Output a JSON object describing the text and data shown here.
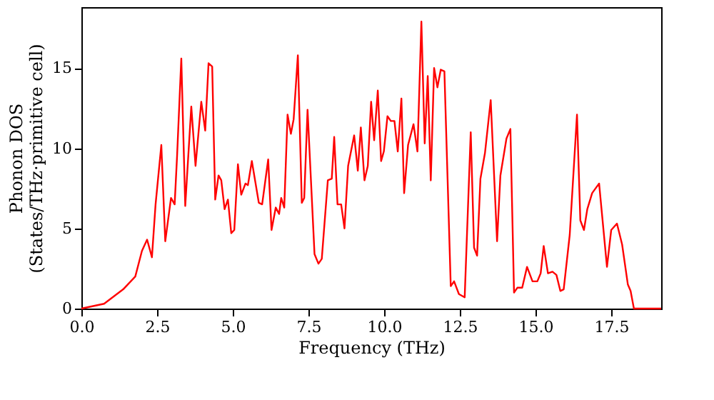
{
  "chart_data": {
    "type": "line",
    "xlabel": "Frequency (THz)",
    "ylabel": "Phonon DOS\n(States/THz·primitive cell)",
    "xlim": [
      0,
      19.15
    ],
    "ylim": [
      0,
      18.8
    ],
    "xticks": [
      {
        "value": 0,
        "label": "0.0"
      },
      {
        "value": 2.5,
        "label": "2.5"
      },
      {
        "value": 5,
        "label": "5.0"
      },
      {
        "value": 7.5,
        "label": "7.5"
      },
      {
        "value": 10,
        "label": "10.0"
      },
      {
        "value": 12.5,
        "label": "12.5"
      },
      {
        "value": 15,
        "label": "15.0"
      },
      {
        "value": 17.5,
        "label": "17.5"
      }
    ],
    "yticks": [
      0,
      5,
      10,
      15
    ],
    "grid": false,
    "marker": "none",
    "line_style": "solid",
    "series": [
      {
        "color": "#ff0000",
        "x": [
          0,
          0.75,
          1.38,
          1.78,
          2.0,
          2.17,
          2.33,
          2.45,
          2.64,
          2.77,
          2.96,
          3.08,
          3.16,
          3.3,
          3.43,
          3.63,
          3.77,
          3.96,
          4.09,
          4.2,
          4.32,
          4.42,
          4.53,
          4.62,
          4.73,
          4.84,
          4.95,
          5.05,
          5.17,
          5.28,
          5.42,
          5.5,
          5.63,
          5.86,
          5.97,
          6.17,
          6.28,
          6.42,
          6.53,
          6.6,
          6.7,
          6.81,
          6.92,
          7.01,
          7.15,
          7.28,
          7.36,
          7.47,
          7.7,
          7.83,
          7.94,
          8.14,
          8.27,
          8.35,
          8.46,
          8.58,
          8.69,
          8.81,
          9.01,
          9.13,
          9.23,
          9.35,
          9.46,
          9.57,
          9.67,
          9.79,
          9.9,
          9.99,
          10.11,
          10.22,
          10.34,
          10.45,
          10.57,
          10.66,
          10.79,
          10.97,
          11.1,
          11.23,
          11.34,
          11.44,
          11.54,
          11.65,
          11.76,
          11.87,
          11.99,
          12.2,
          12.31,
          12.47,
          12.66,
          12.86,
          12.97,
          13.07,
          13.18,
          13.33,
          13.52,
          13.73,
          13.84,
          14.04,
          14.17,
          14.29,
          14.4,
          14.56,
          14.72,
          14.9,
          15.06,
          15.17,
          15.27,
          15.41,
          15.56,
          15.69,
          15.82,
          15.93,
          16.13,
          16.37,
          16.48,
          16.6,
          16.71,
          16.87,
          17.1,
          17.36,
          17.5,
          17.69,
          17.86,
          18.05,
          18.14,
          18.25,
          19.15
        ],
        "values": [
          0,
          0.3,
          1.2,
          2.0,
          3.6,
          4.3,
          3.2,
          6.5,
          10.2,
          4.2,
          6.9,
          6.5,
          9.5,
          15.6,
          6.4,
          12.6,
          8.9,
          12.9,
          11.1,
          15.3,
          15.1,
          6.8,
          8.3,
          8.0,
          6.2,
          6.8,
          4.7,
          4.9,
          9.0,
          7.1,
          7.8,
          7.7,
          9.2,
          6.6,
          6.5,
          9.3,
          4.9,
          6.3,
          5.9,
          6.9,
          6.3,
          12.1,
          10.9,
          11.8,
          15.8,
          6.6,
          6.9,
          12.4,
          3.4,
          2.8,
          3.1,
          8.0,
          8.1,
          10.7,
          6.5,
          6.5,
          5.0,
          8.9,
          10.8,
          8.6,
          11.3,
          8.0,
          8.9,
          12.9,
          10.5,
          13.6,
          9.2,
          9.8,
          12.0,
          11.7,
          11.7,
          9.8,
          13.1,
          7.2,
          10.2,
          11.5,
          9.8,
          17.9,
          10.3,
          14.5,
          8.0,
          15.0,
          13.8,
          14.9,
          14.8,
          1.4,
          1.7,
          0.9,
          0.7,
          11.0,
          3.8,
          3.3,
          8.1,
          9.7,
          13.0,
          4.2,
          8.3,
          10.6,
          11.2,
          1.0,
          1.3,
          1.3,
          2.6,
          1.7,
          1.7,
          2.2,
          3.9,
          2.2,
          2.3,
          2.1,
          1.1,
          1.2,
          4.6,
          12.1,
          5.5,
          4.9,
          6.2,
          7.2,
          7.8,
          2.6,
          4.9,
          5.3,
          4.0,
          1.5,
          1.1,
          0,
          0
        ]
      }
    ]
  }
}
